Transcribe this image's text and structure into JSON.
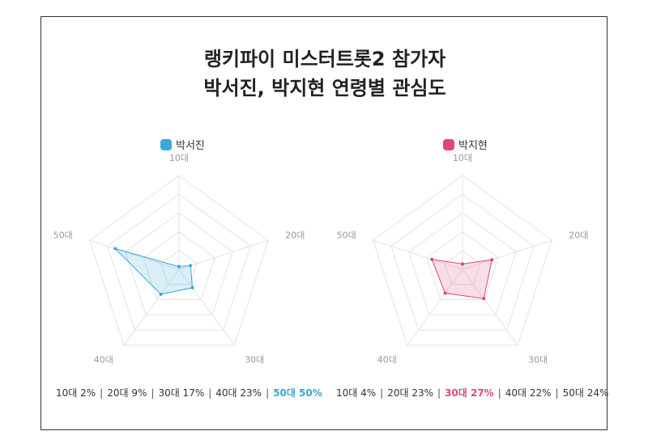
{
  "title": {
    "line1": "랭키파이 미스터트롯2 참가자",
    "line2": "박서진, 박지현 연령별 관심도"
  },
  "colors": {
    "series1": "#3aa8d8",
    "series2": "#e0457b",
    "grid": "#e3e3e3",
    "axis_label": "#999999"
  },
  "chart_data": [
    {
      "type": "radar",
      "categories": [
        "10대",
        "20대",
        "30대",
        "40대",
        "50대"
      ],
      "series": [
        {
          "name": "박서진",
          "values": [
            2,
            9,
            17,
            23,
            50
          ]
        }
      ],
      "rlim": [
        0,
        70
      ],
      "grid": true,
      "legend": "top",
      "summary": [
        {
          "label": "10대 2%",
          "highlight": false
        },
        {
          "label": "20대 9%",
          "highlight": false
        },
        {
          "label": "30대 17%",
          "highlight": false
        },
        {
          "label": "40대 23%",
          "highlight": false
        },
        {
          "label": "50대 50%",
          "highlight": true
        }
      ]
    },
    {
      "type": "radar",
      "categories": [
        "10대",
        "20대",
        "30대",
        "40대",
        "50대"
      ],
      "series": [
        {
          "name": "박지현",
          "values": [
            4,
            23,
            27,
            22,
            24
          ]
        }
      ],
      "rlim": [
        0,
        70
      ],
      "grid": true,
      "legend": "top",
      "summary": [
        {
          "label": "10대 4%",
          "highlight": false
        },
        {
          "label": "20대 23%",
          "highlight": false
        },
        {
          "label": "30대 27%",
          "highlight": true
        },
        {
          "label": "40대 22%",
          "highlight": false
        },
        {
          "label": "50대 24%",
          "highlight": false
        }
      ]
    }
  ]
}
